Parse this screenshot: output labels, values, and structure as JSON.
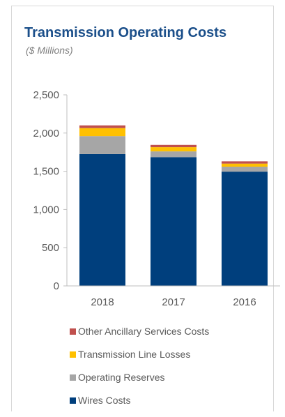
{
  "chart_data": {
    "type": "bar",
    "stacked": true,
    "title": "Transmission Operating Costs",
    "subtitle": "($ Millions)",
    "categories": [
      "2018",
      "2017",
      "2016"
    ],
    "series": [
      {
        "name": "Wires Costs",
        "color": "#003f7d",
        "values": [
          1725,
          1685,
          1495
        ]
      },
      {
        "name": "Operating Reserves",
        "color": "#a6a6a6",
        "values": [
          235,
          75,
          65
        ]
      },
      {
        "name": "Transmission Line Losses",
        "color": "#ffc000",
        "values": [
          105,
          55,
          40
        ]
      },
      {
        "name": "Other Ancillary Services Costs",
        "color": "#c0504d",
        "values": [
          35,
          30,
          30
        ]
      }
    ],
    "yticks": [
      "0",
      "500",
      "1,000",
      "1,500",
      "2,000",
      "2,500"
    ],
    "ylim": [
      0,
      2500
    ],
    "legend_position": "bottom",
    "grid": false
  }
}
